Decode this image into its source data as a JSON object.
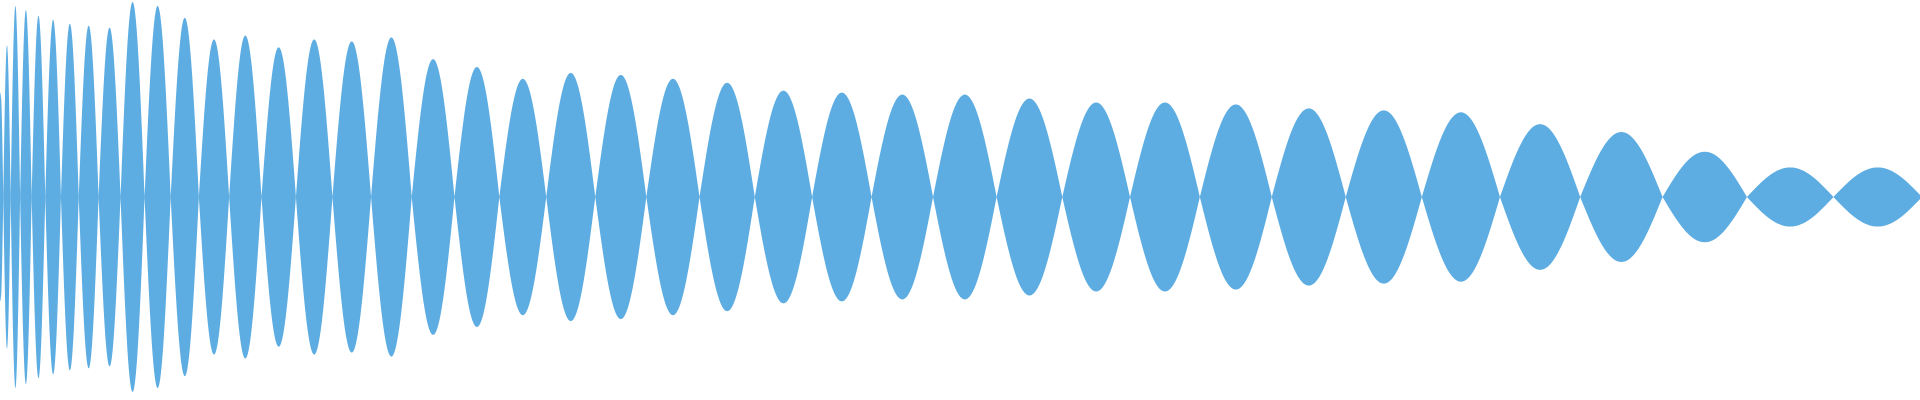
{
  "graphic": {
    "kind": "chirp-waveform",
    "fill_color": "#5dade2",
    "background_color": "#ffffff",
    "lobe_count": 41,
    "amplitudes": [
      0.53,
      0.77,
      0.97,
      0.95,
      0.92,
      0.9,
      0.88,
      0.87,
      0.86,
      0.99,
      0.97,
      0.91,
      0.8,
      0.82,
      0.76,
      0.8,
      0.79,
      0.81,
      0.7,
      0.66,
      0.6,
      0.63,
      0.62,
      0.6,
      0.58,
      0.54,
      0.53,
      0.52,
      0.52,
      0.5,
      0.48,
      0.48,
      0.47,
      0.45,
      0.44,
      0.43,
      0.37,
      0.33,
      0.23,
      0.15,
      0.15
    ]
  }
}
